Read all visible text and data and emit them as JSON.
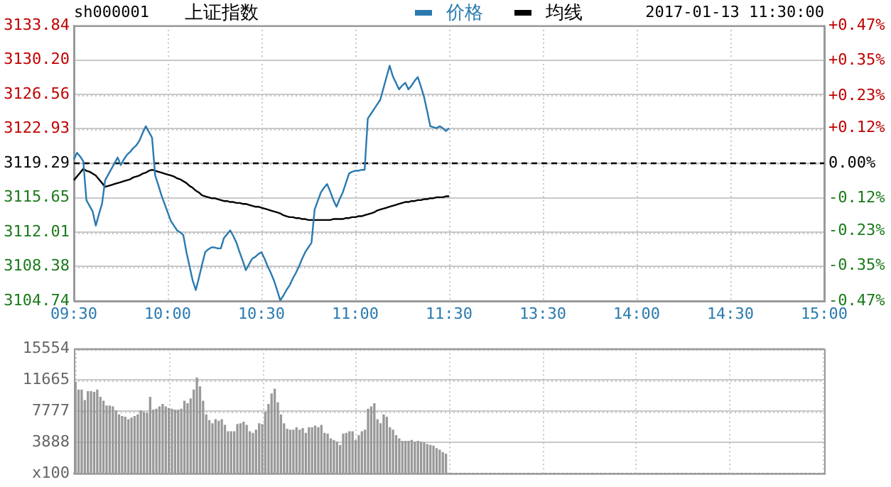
{
  "chart_data": [
    {
      "type": "line",
      "title": "上证指数",
      "annotations": [
        "sh000001",
        "2017-01-13 11:30:00"
      ],
      "legend": "top",
      "grid": true,
      "marker": "none",
      "line_style": "solid",
      "categories": [
        "09:30",
        null,
        null,
        null,
        null,
        null,
        null,
        null,
        null,
        null,
        null,
        null,
        null,
        null,
        null,
        null,
        null,
        null,
        null,
        null,
        null,
        null,
        null,
        null,
        null,
        null,
        null,
        null,
        null,
        null,
        "10:00",
        null,
        null,
        null,
        null,
        null,
        null,
        null,
        null,
        null,
        null,
        null,
        null,
        null,
        null,
        null,
        null,
        null,
        null,
        null,
        null,
        null,
        null,
        null,
        null,
        null,
        null,
        null,
        null,
        null,
        "10:30",
        null,
        null,
        null,
        null,
        null,
        null,
        null,
        null,
        null,
        null,
        null,
        null,
        null,
        null,
        null,
        null,
        null,
        null,
        null,
        null,
        null,
        null,
        null,
        null,
        null,
        null,
        null,
        null,
        null,
        "11:00",
        null,
        null,
        null,
        null,
        null,
        null,
        null,
        null,
        null,
        null,
        null,
        null,
        null,
        null,
        null,
        null,
        null,
        null,
        null,
        null,
        null,
        null,
        null,
        null,
        null,
        null,
        null,
        null,
        null,
        "11:30",
        null,
        null,
        null,
        null,
        null,
        null,
        null,
        null,
        null,
        null,
        null,
        null,
        null,
        null,
        null,
        null,
        null,
        null,
        null,
        null,
        null,
        null,
        null,
        null,
        null,
        null,
        null,
        null,
        null,
        "13:30",
        null,
        null,
        null,
        null,
        null,
        null,
        null,
        null,
        null,
        null,
        null,
        null,
        null,
        null,
        null,
        null,
        null,
        null,
        null,
        null,
        null,
        null,
        null,
        null,
        null,
        null,
        null,
        null,
        null,
        "14:00",
        null,
        null,
        null,
        null,
        null,
        null,
        null,
        null,
        null,
        null,
        null,
        null,
        null,
        null,
        null,
        null,
        null,
        null,
        null,
        null,
        null,
        null,
        null,
        null,
        null,
        null,
        null,
        null,
        null,
        "14:30",
        null,
        null,
        null,
        null,
        null,
        null,
        null,
        null,
        null,
        null,
        null,
        null,
        null,
        null,
        null,
        null,
        null,
        null,
        null,
        null,
        null,
        null,
        null,
        null,
        null,
        null,
        null,
        null,
        null,
        "15:00"
      ],
      "series": [
        {
          "name": "价格",
          "color": "#2a7ab0",
          "values": [
            3119.7,
            3120.4,
            3120.0,
            3119.5,
            3115.4,
            3114.8,
            3114.2,
            3112.7,
            3113.9,
            3115.0,
            3117.5,
            3118.1,
            3118.7,
            3119.3,
            3119.9,
            3119.1,
            3119.7,
            3120.2,
            3120.5,
            3120.9,
            3121.2,
            3121.7,
            3122.5,
            3123.2,
            3122.6,
            3122.0,
            3118.0,
            3117.0,
            3115.9,
            3115.0,
            3114.1,
            3113.2,
            3112.7,
            3112.2,
            3112.0,
            3111.7,
            3109.9,
            3108.4,
            3106.9,
            3105.9,
            3107.2,
            3108.6,
            3109.9,
            3110.2,
            3110.4,
            3110.4,
            3110.3,
            3110.3,
            3111.4,
            3111.8,
            3112.2,
            3111.6,
            3110.9,
            3109.9,
            3109.0,
            3108.0,
            3108.6,
            3109.2,
            3109.4,
            3109.7,
            3109.9,
            3109.2,
            3108.4,
            3107.7,
            3106.9,
            3105.9,
            3104.8,
            3105.3,
            3105.9,
            3106.4,
            3107.1,
            3107.7,
            3108.4,
            3109.2,
            3109.9,
            3110.4,
            3110.9,
            3114.4,
            3115.3,
            3116.2,
            3116.7,
            3117.1,
            3116.3,
            3115.4,
            3114.7,
            3115.5,
            3116.2,
            3117.2,
            3118.2,
            3118.4,
            3118.5,
            3118.5,
            3118.6,
            3118.6,
            3124.0,
            3124.5,
            3125.0,
            3125.5,
            3126.0,
            3127.2,
            3128.4,
            3129.6,
            3128.5,
            3127.8,
            3127.1,
            3127.5,
            3127.8,
            3127.1,
            3127.5,
            3128.0,
            3128.4,
            3127.4,
            3126.3,
            3124.8,
            3123.2,
            3123.1,
            3123.0,
            3123.2,
            3123.0,
            3122.7,
            3123.0,
            null,
            null,
            null,
            null,
            null,
            null,
            null,
            null,
            null,
            null,
            null,
            null,
            null,
            null,
            null,
            null,
            null,
            null,
            null,
            null,
            null,
            null,
            null,
            null,
            null,
            null,
            null,
            null,
            null,
            null,
            null,
            null,
            null,
            null,
            null,
            null,
            null,
            null,
            null,
            null,
            null,
            null,
            null,
            null,
            null,
            null,
            null,
            null,
            null,
            null,
            null,
            null,
            null,
            null,
            null,
            null,
            null,
            null,
            null,
            null,
            null,
            null,
            null,
            null,
            null,
            null,
            null,
            null,
            null,
            null,
            null,
            null,
            null,
            null,
            null,
            null,
            null,
            null,
            null,
            null,
            null,
            null,
            null,
            null,
            null,
            null,
            null,
            null,
            null,
            null,
            null,
            null,
            null,
            null,
            null,
            null,
            null,
            null,
            null,
            null,
            null,
            null,
            null,
            null,
            null,
            null,
            null,
            null,
            null,
            null,
            null,
            null,
            null,
            null,
            null,
            null,
            null,
            null,
            null,
            null
          ]
        },
        {
          "name": "均线",
          "color": "#000000",
          "values": [
            3117.5,
            3117.9,
            3118.3,
            3118.7,
            3118.5,
            3118.4,
            3118.2,
            3118.0,
            3117.6,
            3117.2,
            3116.8,
            3116.9,
            3117.0,
            3117.1,
            3117.2,
            3117.3,
            3117.4,
            3117.5,
            3117.6,
            3117.8,
            3117.9,
            3118.0,
            3118.2,
            3118.3,
            3118.5,
            3118.6,
            3118.5,
            3118.4,
            3118.3,
            3118.2,
            3118.1,
            3118.0,
            3117.9,
            3117.7,
            3117.6,
            3117.4,
            3117.2,
            3116.9,
            3116.7,
            3116.4,
            3116.2,
            3115.9,
            3115.8,
            3115.7,
            3115.6,
            3115.6,
            3115.5,
            3115.4,
            3115.3,
            3115.3,
            3115.2,
            3115.2,
            3115.1,
            3115.1,
            3115.0,
            3115.0,
            3114.9,
            3114.8,
            3114.7,
            3114.7,
            3114.6,
            3114.5,
            3114.4,
            3114.3,
            3114.2,
            3114.1,
            3114.0,
            3113.8,
            3113.7,
            3113.6,
            3113.6,
            3113.5,
            3113.5,
            3113.4,
            3113.4,
            3113.3,
            3113.3,
            3113.3,
            3113.3,
            3113.3,
            3113.3,
            3113.3,
            3113.3,
            3113.4,
            3113.4,
            3113.4,
            3113.4,
            3113.5,
            3113.5,
            3113.6,
            3113.6,
            3113.7,
            3113.7,
            3113.8,
            3113.9,
            3114.0,
            3114.1,
            3114.3,
            3114.4,
            3114.5,
            3114.6,
            3114.7,
            3114.8,
            3114.9,
            3115.0,
            3115.1,
            3115.2,
            3115.2,
            3115.3,
            3115.3,
            3115.4,
            3115.4,
            3115.5,
            3115.5,
            3115.6,
            3115.6,
            3115.7,
            3115.7,
            3115.7,
            3115.8,
            3115.8,
            null,
            null,
            null,
            null,
            null,
            null,
            null,
            null,
            null,
            null,
            null,
            null,
            null,
            null,
            null,
            null,
            null,
            null,
            null,
            null,
            null,
            null,
            null,
            null,
            null,
            null,
            null,
            null,
            null,
            null,
            null,
            null,
            null,
            null,
            null,
            null,
            null,
            null,
            null,
            null,
            null,
            null,
            null,
            null,
            null,
            null,
            null,
            null,
            null,
            null,
            null,
            null,
            null,
            null,
            null,
            null,
            null,
            null,
            null,
            null,
            null,
            null,
            null,
            null,
            null,
            null,
            null,
            null,
            null,
            null,
            null,
            null,
            null,
            null,
            null,
            null,
            null,
            null,
            null,
            null,
            null,
            null,
            null,
            null,
            null,
            null,
            null,
            null,
            null,
            null,
            null,
            null,
            null,
            null,
            null,
            null,
            null,
            null,
            null,
            null,
            null,
            null,
            null,
            null,
            null,
            null,
            null,
            null,
            null,
            null,
            null,
            null,
            null,
            null,
            null,
            null,
            null,
            null,
            null,
            null
          ]
        }
      ],
      "ylim": [
        3104.74,
        3133.84
      ],
      "yticks": [
        {
          "value": 3104.74,
          "label": "3104.74"
        },
        {
          "value": 3108.38,
          "label": "3108.38"
        },
        {
          "value": 3112.01,
          "label": "3112.01"
        },
        {
          "value": 3115.65,
          "label": "3115.65"
        },
        {
          "value": 3119.29,
          "label": "3119.29"
        },
        {
          "value": 3122.93,
          "label": "3122.93"
        },
        {
          "value": 3126.56,
          "label": "3126.56"
        },
        {
          "value": 3130.2,
          "label": "3130.20"
        },
        {
          "value": 3133.84,
          "label": "3133.84"
        }
      ],
      "y2lim": [
        -0.47,
        0.47
      ],
      "y2ticks": [
        {
          "value": -0.47,
          "label": "-0.47%"
        },
        {
          "value": -0.35,
          "label": "-0.35%"
        },
        {
          "value": -0.23,
          "label": "-0.23%"
        },
        {
          "value": -0.12,
          "label": "-0.12%"
        },
        {
          "value": 0,
          "label": "0.00%"
        },
        {
          "value": 0.12,
          "label": "+0.12%"
        },
        {
          "value": 0.23,
          "label": "+0.23%"
        },
        {
          "value": 0.35,
          "label": "+0.35%"
        },
        {
          "value": 0.47,
          "label": "+0.47%"
        }
      ],
      "ref_lines": [
        {
          "axis": "y",
          "value": 3119.29,
          "color": "#000000",
          "line_style": "dashed"
        }
      ]
    },
    {
      "type": "bar",
      "color": "#999999",
      "grid": true,
      "tick_labels": "y",
      "categories": [
        null,
        null,
        null,
        null,
        null,
        null,
        null,
        null,
        null,
        null,
        null,
        null,
        null,
        null,
        null,
        null,
        null,
        null,
        null,
        null,
        null,
        null,
        null,
        null,
        null,
        null,
        null,
        null,
        null,
        null,
        null,
        null,
        null,
        null,
        null,
        null,
        null,
        null,
        null,
        null,
        null,
        null,
        null,
        null,
        null,
        null,
        null,
        null,
        null,
        null,
        null,
        null,
        null,
        null,
        null,
        null,
        null,
        null,
        null,
        null,
        null,
        null,
        null,
        null,
        null,
        null,
        null,
        null,
        null,
        null,
        null,
        null,
        null,
        null,
        null,
        null,
        null,
        null,
        null,
        null,
        null,
        null,
        null,
        null,
        null,
        null,
        null,
        null,
        null,
        null,
        null,
        null,
        null,
        null,
        null,
        null,
        null,
        null,
        null,
        null,
        null,
        null,
        null,
        null,
        null,
        null,
        null,
        null,
        null,
        null,
        null,
        null,
        null,
        null,
        null,
        null,
        null,
        null,
        null,
        null,
        null,
        null,
        null,
        null,
        null,
        null,
        null,
        null,
        null,
        null,
        null,
        null,
        null,
        null,
        null,
        null,
        null,
        null,
        null,
        null,
        null,
        null,
        null,
        null,
        null,
        null,
        null,
        null,
        null,
        null,
        null,
        null,
        null,
        null,
        null,
        null,
        null,
        null,
        null,
        null,
        null,
        null,
        null,
        null,
        null,
        null,
        null,
        null,
        null,
        null,
        null,
        null,
        null,
        null,
        null,
        null,
        null,
        null,
        null,
        null,
        null,
        null,
        null,
        null,
        null,
        null,
        null,
        null,
        null,
        null,
        null,
        null,
        null,
        null,
        null,
        null,
        null,
        null,
        null,
        null,
        null,
        null,
        null,
        null,
        null,
        null,
        null,
        null,
        null,
        null,
        null,
        null,
        null,
        null,
        null,
        null,
        null,
        null,
        null,
        null,
        null,
        null,
        null,
        null,
        null,
        null,
        null,
        null,
        null,
        null,
        null,
        null,
        null,
        null,
        null,
        null,
        null,
        null,
        null,
        null,
        null
      ],
      "values": [
        11400,
        10400,
        10400,
        9100,
        10200,
        10200,
        10100,
        10400,
        9500,
        9000,
        8400,
        8400,
        8300,
        7800,
        7300,
        7100,
        7000,
        6700,
        6900,
        7100,
        7300,
        7800,
        7600,
        7500,
        9500,
        7900,
        8000,
        8300,
        8600,
        8300,
        8100,
        8000,
        7900,
        7900,
        8000,
        9000,
        8700,
        9300,
        10400,
        11900,
        10800,
        9000,
        7300,
        6600,
        6200,
        6700,
        6500,
        6700,
        6000,
        5200,
        5200,
        5200,
        6100,
        6200,
        6400,
        6000,
        5200,
        5000,
        5400,
        6200,
        6100,
        7600,
        8600,
        9900,
        10500,
        8800,
        7300,
        6200,
        5500,
        5400,
        5400,
        5700,
        5400,
        5600,
        5000,
        5700,
        5700,
        5900,
        5700,
        6000,
        5000,
        4900,
        4300,
        4100,
        3900,
        3500,
        4900,
        5000,
        5200,
        5200,
        4100,
        4700,
        5200,
        5400,
        8000,
        8300,
        8700,
        6700,
        6200,
        7300,
        7000,
        5700,
        5400,
        4700,
        4300,
        4000,
        4000,
        4000,
        4100,
        3900,
        4000,
        3900,
        3800,
        3600,
        3500,
        3400,
        3100,
        2900,
        2600,
        2400,
        null,
        null,
        null,
        null,
        null,
        null,
        null,
        null,
        null,
        null,
        null,
        null,
        null,
        null,
        null,
        null,
        null,
        null,
        null,
        null,
        null,
        null,
        null,
        null,
        null,
        null,
        null,
        null,
        null,
        null,
        null,
        null,
        null,
        null,
        null,
        null,
        null,
        null,
        null,
        null,
        null,
        null,
        null,
        null,
        null,
        null,
        null,
        null,
        null,
        null,
        null,
        null,
        null,
        null,
        null,
        null,
        null,
        null,
        null,
        null,
        null,
        null,
        null,
        null,
        null,
        null,
        null,
        null,
        null,
        null,
        null,
        null,
        null,
        null,
        null,
        null,
        null,
        null,
        null,
        null,
        null,
        null,
        null,
        null,
        null,
        null,
        null,
        null,
        null,
        null,
        null,
        null,
        null,
        null,
        null,
        null,
        null,
        null,
        null,
        null,
        null,
        null,
        null,
        null,
        null,
        null,
        null,
        null,
        null,
        null,
        null,
        null,
        null,
        null,
        null,
        null,
        null,
        null,
        null,
        null,
        null
      ],
      "ylim": [
        0,
        15554
      ],
      "yticks": [
        {
          "value": 0,
          "label": "x100"
        },
        {
          "value": 3888,
          "label": "3888"
        },
        {
          "value": 7777,
          "label": "7777"
        },
        {
          "value": 11665,
          "label": "11665"
        },
        {
          "value": 15554,
          "label": "15554"
        }
      ]
    }
  ]
}
